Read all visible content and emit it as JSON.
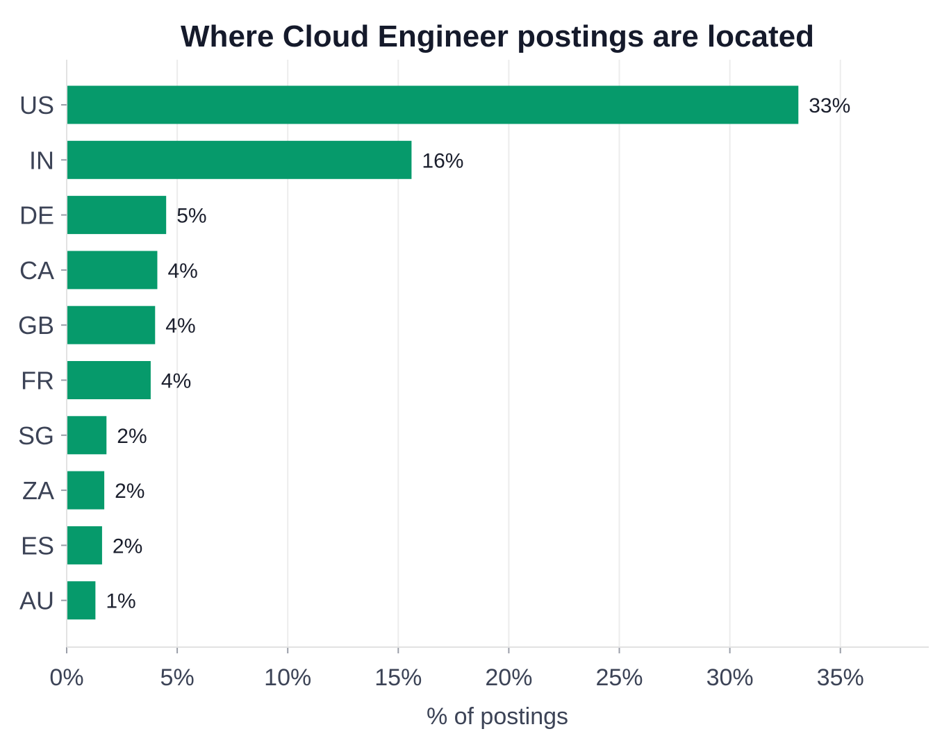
{
  "chart_data": {
    "type": "bar",
    "orientation": "horizontal",
    "title": "Where Cloud Engineer postings are located",
    "xlabel": "% of postings",
    "ylabel": "",
    "categories": [
      "US",
      "IN",
      "DE",
      "CA",
      "GB",
      "FR",
      "SG",
      "ZA",
      "ES",
      "AU"
    ],
    "values": [
      33.1,
      15.6,
      4.5,
      4.1,
      4.0,
      3.8,
      1.8,
      1.7,
      1.6,
      1.3
    ],
    "value_labels": [
      "33%",
      "16%",
      "5%",
      "4%",
      "4%",
      "4%",
      "2%",
      "2%",
      "2%",
      "1%"
    ],
    "xlim": [
      0,
      39
    ],
    "xticks": [
      0,
      5,
      10,
      15,
      20,
      25,
      30,
      35
    ],
    "xtick_labels": [
      "0%",
      "5%",
      "10%",
      "15%",
      "20%",
      "25%",
      "30%",
      "35%"
    ],
    "grid": "vertical",
    "bar_color": "#069a6b"
  }
}
